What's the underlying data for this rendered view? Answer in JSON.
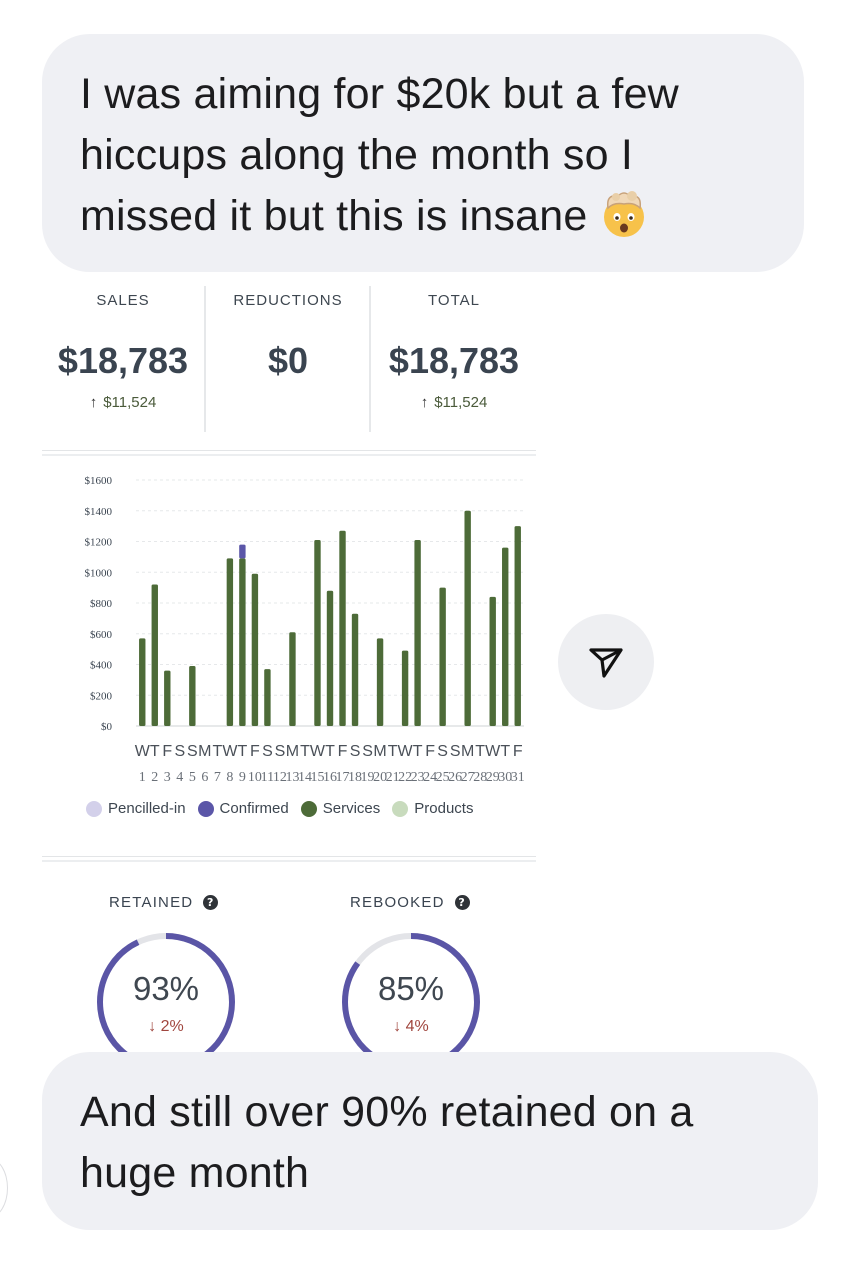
{
  "messages": {
    "top": "I was aiming for $20k but a few hiccups along the month so I missed it but this is insane",
    "top_emoji": "exploding-head-emoji",
    "bottom": "And still over 90% retained on a huge month"
  },
  "stats": {
    "sales": {
      "label": "SALES",
      "value": "$18,783",
      "delta": "$11,524"
    },
    "reductions": {
      "label": "REDUCTIONS",
      "value": "$0"
    },
    "total": {
      "label": "TOTAL",
      "value": "$18,783",
      "delta": "$11,524"
    }
  },
  "chart_data": {
    "type": "bar",
    "stacked": true,
    "y_tick_labels": [
      "$0",
      "$200",
      "$400",
      "$600",
      "$800",
      "$1000",
      "$1200",
      "$1400",
      "$1600"
    ],
    "ylim": [
      0,
      1600
    ],
    "grid": true,
    "day_letters": [
      "W",
      "T",
      "F",
      "S",
      "S",
      "M",
      "T",
      "W",
      "T",
      "F",
      "S",
      "S",
      "M",
      "T",
      "W",
      "T",
      "F",
      "S",
      "S",
      "M",
      "T",
      "W",
      "T",
      "F",
      "S",
      "S",
      "M",
      "T",
      "W",
      "T",
      "F"
    ],
    "day_numbers": [
      "1",
      "2",
      "3",
      "4",
      "5",
      "6",
      "7",
      "8",
      "9",
      "10",
      "11",
      "12",
      "13",
      "14",
      "15",
      "16",
      "17",
      "18",
      "19",
      "20",
      "21",
      "22",
      "23",
      "24",
      "25",
      "26",
      "27",
      "28",
      "29",
      "30",
      "31"
    ],
    "series": [
      {
        "name": "Pencilled-in",
        "color": "#d3d0ea",
        "values": [
          0,
          0,
          0,
          0,
          0,
          0,
          0,
          0,
          0,
          0,
          0,
          0,
          0,
          0,
          0,
          0,
          0,
          0,
          0,
          0,
          0,
          0,
          0,
          0,
          0,
          0,
          0,
          0,
          0,
          0,
          0
        ]
      },
      {
        "name": "Confirmed",
        "color": "#5b56a8",
        "values": [
          0,
          0,
          0,
          0,
          0,
          0,
          0,
          0,
          90,
          0,
          0,
          0,
          0,
          0,
          0,
          0,
          0,
          0,
          0,
          0,
          0,
          0,
          0,
          0,
          0,
          0,
          0,
          0,
          0,
          0,
          0
        ]
      },
      {
        "name": "Services",
        "color": "#4d6b38",
        "values": [
          570,
          920,
          360,
          0,
          390,
          0,
          0,
          1090,
          1090,
          990,
          370,
          0,
          610,
          0,
          1210,
          880,
          1270,
          730,
          0,
          570,
          0,
          490,
          1210,
          0,
          900,
          0,
          1400,
          0,
          840,
          1160,
          1300
        ]
      },
      {
        "name": "Products",
        "color": "#c8dbbd",
        "values": [
          0,
          0,
          0,
          0,
          0,
          0,
          0,
          0,
          0,
          0,
          0,
          0,
          0,
          0,
          0,
          0,
          0,
          0,
          0,
          0,
          0,
          0,
          0,
          0,
          0,
          0,
          0,
          0,
          0,
          0,
          0
        ]
      }
    ],
    "legend_position": "bottom"
  },
  "gauges": [
    {
      "label": "RETAINED",
      "value": "93%",
      "fraction": 0.93,
      "delta": "2%"
    },
    {
      "label": "REBOOKED",
      "value": "85%",
      "fraction": 0.85,
      "delta": "4%"
    }
  ],
  "colors": {
    "gauge_fill": "#5a55a6",
    "gauge_track": "#e3e4e8",
    "bubble_bg": "#eff0f4",
    "delta_up": "#4a5a3a",
    "delta_down": "#a0463e"
  },
  "icons": {
    "send": "send-icon",
    "help": "help-icon",
    "arrow_up": "arrow-up-icon",
    "arrow_down": "arrow-down-icon"
  }
}
